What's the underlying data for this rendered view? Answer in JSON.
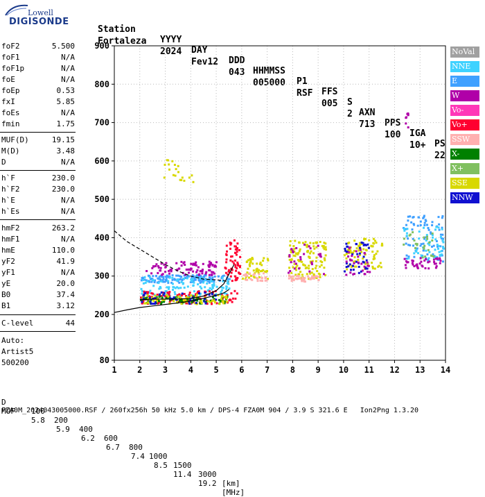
{
  "logo": {
    "brand": "Lowell",
    "product": "DIGISONDE"
  },
  "header": {
    "row1": [
      "Station",
      "YYYY",
      "DAY",
      "DDD",
      "HHMMSS",
      "P1",
      "FFS",
      "S",
      "AXN",
      "PPS",
      "IGA",
      "PS"
    ],
    "row2": [
      "Fortaleza",
      "2024",
      "Fev12",
      "043",
      "005000",
      "RSF",
      "005",
      "2",
      "713",
      "100",
      "10+",
      "22"
    ]
  },
  "parameters": [
    {
      "name": "foF2",
      "value": "5.500"
    },
    {
      "name": "foF1",
      "value": "N/A"
    },
    {
      "name": "foF1p",
      "value": "N/A"
    },
    {
      "name": "foE",
      "value": "N/A"
    },
    {
      "name": "foEp",
      "value": "0.53"
    },
    {
      "name": "fxI",
      "value": "5.85"
    },
    {
      "name": "foEs",
      "value": "N/A"
    },
    {
      "name": "fmin",
      "value": "1.75"
    },
    {
      "name": "MUF(D)",
      "value": "19.15"
    },
    {
      "name": "M(D)",
      "value": "3.48"
    },
    {
      "name": "D",
      "value": "N/A"
    },
    {
      "name": "h`F",
      "value": "230.0"
    },
    {
      "name": "h`F2",
      "value": "230.0"
    },
    {
      "name": "h`E",
      "value": "N/A"
    },
    {
      "name": "h`Es",
      "value": "N/A"
    },
    {
      "name": "hmF2",
      "value": "263.2"
    },
    {
      "name": "hmF1",
      "value": "N/A"
    },
    {
      "name": "hmE",
      "value": "110.0"
    },
    {
      "name": "yF2",
      "value": "41.9"
    },
    {
      "name": "yF1",
      "value": "N/A"
    },
    {
      "name": "yE",
      "value": "20.0"
    },
    {
      "name": "B0",
      "value": "37.4"
    },
    {
      "name": "B1",
      "value": "3.12"
    },
    {
      "name": "C-level",
      "value": "44"
    }
  ],
  "autoscaling": {
    "label": "Auto:",
    "name": "Artist5",
    "version": "500200"
  },
  "legend": [
    {
      "label": "NoVal",
      "color": "#a0a0a0"
    },
    {
      "label": "NNE",
      "color": "#3fd2ff"
    },
    {
      "label": "E",
      "color": "#3fa0ff"
    },
    {
      "label": "W",
      "color": "#b000a8"
    },
    {
      "label": "Vo-",
      "color": "#ff38b8"
    },
    {
      "label": "Vo+",
      "color": "#ff0030"
    },
    {
      "label": "SSW",
      "color": "#ffb0b0"
    },
    {
      "label": "X-",
      "color": "#008000"
    },
    {
      "label": "X+",
      "color": "#80c060"
    },
    {
      "label": "SSE",
      "color": "#d8d800"
    },
    {
      "label": "NNW",
      "color": "#1010d0"
    }
  ],
  "footer": {
    "row_d_label": "D",
    "row_d_values": [
      "100",
      "200",
      "400",
      "600",
      "800",
      "1000",
      "1500",
      "3000"
    ],
    "row_d_unit": "[km]",
    "row_muf_label": "MUF",
    "row_muf_values": [
      "5.8",
      "5.9",
      "6.2",
      "6.7",
      "7.4",
      "8.5",
      "11.4",
      "19.2"
    ],
    "row_muf_unit": "[MHz]",
    "file_line": "FZA0M_2024043005000.RSF / 260fx256h 50 kHz 5.0 km / DPS-4 FZA0M 904 / 3.9 S 321.6 E   Ion2Png 1.3.20"
  },
  "chart_data": {
    "type": "scatter",
    "x_ticks": [
      "1",
      "2",
      "3",
      "4",
      "5",
      "6",
      "7",
      "8",
      "9",
      "10",
      "11",
      "12",
      "13",
      "14"
    ],
    "y_ticks": [
      "80",
      "200",
      "300",
      "400",
      "500",
      "600",
      "700",
      "800",
      "900"
    ],
    "xlim": [
      1,
      14
    ],
    "ylim_display": [
      80,
      900
    ],
    "grid": true,
    "traces": [
      {
        "name": "",
        "style": "dashed",
        "x": [
          1.0,
          1.5,
          2.0,
          2.5,
          3.0,
          3.5,
          4.0,
          4.5,
          5.0,
          5.3,
          5.5
        ],
        "y": [
          418,
          390,
          370,
          350,
          330,
          313,
          300,
          292,
          290,
          288,
          285
        ]
      },
      {
        "name": "",
        "style": "solid",
        "x": [
          1.0,
          1.5,
          2.0,
          2.5,
          3.0,
          3.5,
          4.0,
          4.5,
          5.0,
          5.3,
          5.5
        ],
        "y": [
          205,
          212,
          218,
          222,
          226,
          230,
          235,
          242,
          250,
          256,
          265
        ]
      },
      {
        "name": "",
        "style": "solid",
        "x": [
          2.0,
          2.5,
          3.0,
          3.5,
          4.0,
          4.5,
          5.0,
          5.3,
          5.5,
          5.7
        ],
        "y": [
          238,
          240,
          240,
          240,
          242,
          248,
          262,
          280,
          305,
          330
        ]
      }
    ],
    "clusters": [
      {
        "legend": "E",
        "x": [
          2.0,
          5.5
        ],
        "y": [
          285,
          305
        ],
        "count": 140
      },
      {
        "legend": "NNE",
        "x": [
          2.0,
          5.5
        ],
        "y": [
          250,
          300
        ],
        "count": 120
      },
      {
        "legend": "W",
        "x": [
          2.2,
          5.0
        ],
        "y": [
          305,
          340
        ],
        "count": 90
      },
      {
        "legend": "Vo+",
        "x": [
          2.0,
          5.8
        ],
        "y": [
          230,
          265
        ],
        "count": 110
      },
      {
        "legend": "X-",
        "x": [
          2.0,
          5.5
        ],
        "y": [
          230,
          250
        ],
        "count": 90
      },
      {
        "legend": "SSE",
        "x": [
          2.0,
          5.5
        ],
        "y": [
          230,
          255
        ],
        "count": 70
      },
      {
        "legend": "NNW",
        "x": [
          2.0,
          5.0
        ],
        "y": [
          230,
          260
        ],
        "count": 40
      },
      {
        "legend": "Vo+",
        "x": [
          5.3,
          5.9
        ],
        "y": [
          290,
          400
        ],
        "count": 60
      },
      {
        "legend": "SSE",
        "x": [
          6.0,
          7.0
        ],
        "y": [
          295,
          355
        ],
        "count": 50
      },
      {
        "legend": "SSW",
        "x": [
          6.0,
          7.0
        ],
        "y": [
          290,
          310
        ],
        "count": 25
      },
      {
        "legend": "SSE",
        "x": [
          7.8,
          9.3
        ],
        "y": [
          295,
          395
        ],
        "count": 120
      },
      {
        "legend": "SSW",
        "x": [
          7.8,
          9.0
        ],
        "y": [
          288,
          305
        ],
        "count": 40
      },
      {
        "legend": "W",
        "x": [
          7.8,
          9.2
        ],
        "y": [
          300,
          385
        ],
        "count": 30
      },
      {
        "legend": "SSE",
        "x": [
          10.0,
          11.5
        ],
        "y": [
          320,
          400
        ],
        "count": 80
      },
      {
        "legend": "NNW",
        "x": [
          10.0,
          11.0
        ],
        "y": [
          310,
          390
        ],
        "count": 40
      },
      {
        "legend": "W",
        "x": [
          10.0,
          11.0
        ],
        "y": [
          305,
          380
        ],
        "count": 30
      },
      {
        "legend": "E",
        "x": [
          12.3,
          13.9
        ],
        "y": [
          340,
          460
        ],
        "count": 80
      },
      {
        "legend": "NNE",
        "x": [
          12.3,
          13.9
        ],
        "y": [
          340,
          440
        ],
        "count": 50
      },
      {
        "legend": "W",
        "x": [
          12.3,
          13.8
        ],
        "y": [
          320,
          350
        ],
        "count": 40
      },
      {
        "legend": "X+",
        "x": [
          12.3,
          13.5
        ],
        "y": [
          350,
          420
        ],
        "count": 25
      },
      {
        "legend": "SSE",
        "x": [
          2.9,
          4.1
        ],
        "y": [
          540,
          610
        ],
        "count": 20
      },
      {
        "legend": "W",
        "x": [
          12.4,
          12.5
        ],
        "y": [
          690,
          730
        ],
        "count": 8
      }
    ]
  }
}
